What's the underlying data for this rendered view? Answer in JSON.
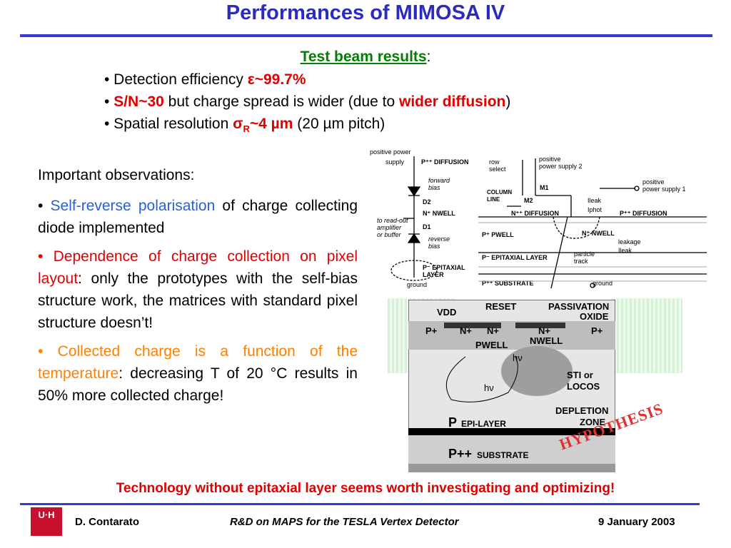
{
  "title": "Performances of MIMOSA IV",
  "test_beam": {
    "heading": "Test beam results",
    "colon": ":",
    "bullets": [
      {
        "prefix": "• Detection efficiency ",
        "highlight": "ε~99.7%",
        "suffix": ""
      },
      {
        "prefix": "• ",
        "highlight": "S/N~30",
        "middle": " but charge spread is wider (due to ",
        "highlight2": "wider diffusion",
        "suffix": ")"
      },
      {
        "prefix": "• Spatial resolution ",
        "highlight": "σ",
        "sub": "R",
        "highlight_b": "~4 µm",
        "suffix": " (20 µm pitch)"
      }
    ]
  },
  "observations": {
    "heading": "Important observations:",
    "items": [
      {
        "bullet": "• ",
        "highlight": "Self-reverse polarisation",
        "rest": " of charge collecting diode implemented",
        "color": "#2a5fd6"
      },
      {
        "bullet": "• ",
        "highlight": "Dependence of charge collection on pixel layout",
        "rest": ": only the prototypes with the self-bias structure work, the matrices with standard pixel structure doesn’t!",
        "color": "#e00000"
      },
      {
        "bullet": "• ",
        "highlight": "Collected charge is a function of the temperature",
        "rest": ": decreasing T of 20 °C results in 50% more collected charge!",
        "color": "#ff8000"
      }
    ]
  },
  "circuit": {
    "positive_power": "positive power",
    "supply": "supply",
    "diffusion_top": "P⁺⁺ DIFFUSION",
    "forward_bias": "forward",
    "forward_bias2": "bias",
    "d2": "D2",
    "n_nwell": "N⁺ NWELL",
    "read_out": [
      "to read-out",
      "amplifier",
      "or buffer"
    ],
    "d1": "D1",
    "reverse_bias": "reverse",
    "reverse_bias2": "bias",
    "p_epi": "P⁻ EPITAXIAL",
    "layer": "LAYER",
    "ground": "ground",
    "row_select": [
      "row",
      "select"
    ],
    "pos_supply2": [
      "positive",
      "power supply 2"
    ],
    "pos_supply1": [
      "positive",
      "power supply 1"
    ],
    "column_line": [
      "COLUMN",
      "LINE"
    ],
    "m2": "M2",
    "m1": "M1",
    "ileak": "Ileak",
    "iphot": "Iphot",
    "n_diffusion": "N⁺⁺ DIFFUSION",
    "p_diffusion": "P⁺⁺ DIFFUSION",
    "p_pwell": "P⁺ PWELL",
    "n_nwell2": "N⁺ NWELL",
    "leakage": "leakage",
    "ileak2": "Ileak",
    "particle": "particle",
    "track": "track",
    "p_epi_layer": "P⁻ EPITAXIAL LAYER",
    "p_substrate": "P⁺⁺ SUBSTRATE",
    "ground2": "ground"
  },
  "cross_section": {
    "vdd": "VDD",
    "reset": "RESET",
    "passivation": "PASSIVATION",
    "oxide": "OXIDE",
    "p_plus_l": "P+",
    "n_plus_1": "N+",
    "n_plus_2": "N+",
    "n_plus_3": "N+",
    "p_plus_r": "P+",
    "pwell": "PWELL",
    "nwell": "NWELL",
    "hv1": "hν",
    "hv2": "hν",
    "sti": "STI or",
    "locos": "LOCOS",
    "depletion": "DEPLETION",
    "zone": "ZONE",
    "epi_p": "P",
    "epi_layer": "EPI-LAYER",
    "sub_p": "P++",
    "substrate": "SUBSTRATE"
  },
  "hypothesis": "HYPOTHESIS",
  "conclusion": "Technology without epitaxial layer seems worth investigating and optimizing!",
  "footer": {
    "logo_text": "U·H",
    "author": "D. Contarato",
    "talk": "R&D on MAPS for the TESLA Vertex Detector",
    "date": "9 January 2003"
  },
  "colors": {
    "title": "#2b2bbf",
    "accent_green": "#008000",
    "accent_red": "#e00000",
    "accent_orange": "#ff8000",
    "accent_blue": "#2a5fd6"
  }
}
